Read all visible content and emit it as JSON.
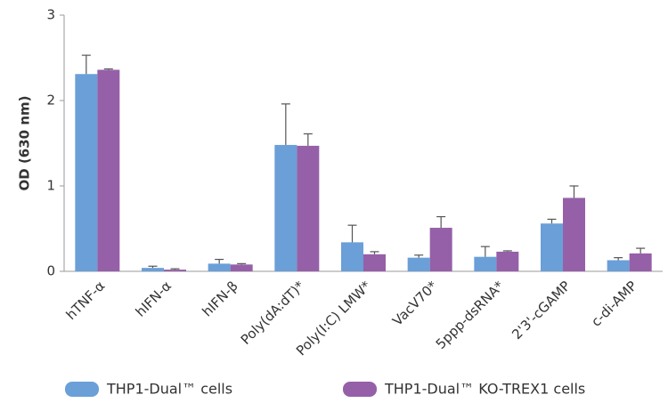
{
  "chart_data": {
    "type": "bar",
    "y_label": "OD (630 nm)",
    "categories": [
      "hTNF-α",
      "hIFN-α",
      "hIFN-β",
      "Poly(dA:dT)*",
      "Poly(I:C) LMW*",
      "VacV70*",
      "5ppp-dsRNA*",
      "2'3'-cGAMP",
      "c-di-AMP"
    ],
    "series": [
      {
        "name": "THP1-Dual™ cells",
        "color": "#6a9fd8",
        "values": [
          2.31,
          0.04,
          0.09,
          1.48,
          0.34,
          0.16,
          0.17,
          0.56,
          0.13
        ],
        "errors": [
          0.22,
          0.02,
          0.05,
          0.48,
          0.2,
          0.03,
          0.12,
          0.05,
          0.03
        ]
      },
      {
        "name": "THP1-Dual™ KO-TREX1 cells",
        "color": "#9560a8",
        "values": [
          2.36,
          0.02,
          0.08,
          1.47,
          0.2,
          0.51,
          0.23,
          0.86,
          0.21
        ],
        "errors": [
          0.01,
          0.01,
          0.01,
          0.14,
          0.03,
          0.13,
          0.01,
          0.14,
          0.06
        ]
      }
    ],
    "ylim": [
      0,
      3
    ],
    "yticks": [
      0,
      1,
      2,
      3
    ],
    "grid": false,
    "legend": "bottom"
  }
}
